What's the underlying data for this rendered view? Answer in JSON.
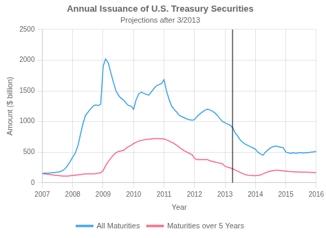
{
  "chart_data": {
    "type": "line",
    "title": "Annual Issuance of U.S. Treasury Securities",
    "subtitle": "Projections after 3/2013",
    "x_label": "Year",
    "y_label": "Amount ($ billion)",
    "x": [
      2007.0,
      2007.08,
      2007.17,
      2007.25,
      2007.33,
      2007.42,
      2007.5,
      2007.58,
      2007.67,
      2007.75,
      2007.83,
      2007.92,
      2008.0,
      2008.08,
      2008.17,
      2008.25,
      2008.33,
      2008.42,
      2008.5,
      2008.58,
      2008.67,
      2008.75,
      2008.83,
      2008.92,
      2009.0,
      2009.08,
      2009.17,
      2009.25,
      2009.33,
      2009.42,
      2009.5,
      2009.58,
      2009.67,
      2009.75,
      2009.83,
      2009.92,
      2010.0,
      2010.08,
      2010.17,
      2010.25,
      2010.33,
      2010.42,
      2010.5,
      2010.58,
      2010.67,
      2010.75,
      2010.83,
      2010.92,
      2011.0,
      2011.08,
      2011.17,
      2011.25,
      2011.33,
      2011.42,
      2011.5,
      2011.58,
      2011.67,
      2011.75,
      2011.83,
      2011.92,
      2012.0,
      2012.08,
      2012.17,
      2012.25,
      2012.33,
      2012.42,
      2012.5,
      2012.58,
      2012.67,
      2012.75,
      2012.83,
      2012.92,
      2013.0,
      2013.08,
      2013.17,
      2013.25,
      2013.33,
      2013.42,
      2013.5,
      2013.58,
      2013.67,
      2013.75,
      2013.83,
      2013.92,
      2014.0,
      2014.08,
      2014.17,
      2014.25,
      2014.33,
      2014.42,
      2014.5,
      2014.58,
      2014.67,
      2014.75,
      2014.83,
      2014.92,
      2015.0,
      2015.08,
      2015.17,
      2015.25,
      2015.33,
      2015.42,
      2015.5,
      2015.58,
      2015.67,
      2015.75,
      2015.83,
      2015.92,
      2016.0
    ],
    "series": [
      {
        "name": "All Maturities",
        "values": [
          150,
          160,
          155,
          160,
          165,
          170,
          175,
          180,
          200,
          230,
          280,
          350,
          420,
          480,
          600,
          780,
          950,
          1100,
          1150,
          1200,
          1250,
          1270,
          1260,
          1280,
          1900,
          2020,
          1950,
          1800,
          1650,
          1500,
          1430,
          1380,
          1350,
          1300,
          1260,
          1250,
          1200,
          1350,
          1450,
          1480,
          1460,
          1440,
          1430,
          1480,
          1540,
          1580,
          1600,
          1620,
          1680,
          1500,
          1350,
          1250,
          1200,
          1150,
          1100,
          1080,
          1060,
          1040,
          1030,
          1020,
          1030,
          1080,
          1120,
          1150,
          1180,
          1200,
          1190,
          1170,
          1140,
          1100,
          1050,
          1000,
          980,
          960,
          940,
          900,
          820,
          760,
          700,
          660,
          630,
          610,
          590,
          570,
          550,
          500,
          470,
          450,
          500,
          540,
          570,
          590,
          600,
          590,
          580,
          570,
          500,
          490,
          480,
          490,
          480,
          490,
          490,
          485,
          490,
          495,
          500,
          505,
          510
        ]
      },
      {
        "name": "Maturities over 5 Years",
        "values": [
          150,
          145,
          140,
          135,
          130,
          125,
          120,
          115,
          110,
          110,
          110,
          115,
          120,
          125,
          130,
          135,
          140,
          145,
          145,
          145,
          145,
          150,
          155,
          165,
          200,
          280,
          350,
          400,
          450,
          490,
          510,
          520,
          530,
          560,
          590,
          610,
          640,
          660,
          680,
          690,
          700,
          710,
          710,
          715,
          720,
          720,
          720,
          718,
          715,
          700,
          680,
          660,
          640,
          610,
          580,
          550,
          520,
          500,
          480,
          460,
          400,
          380,
          380,
          380,
          380,
          380,
          360,
          350,
          340,
          330,
          320,
          310,
          270,
          255,
          245,
          230,
          210,
          190,
          170,
          150,
          135,
          125,
          120,
          118,
          115,
          120,
          130,
          145,
          165,
          180,
          190,
          200,
          205,
          205,
          200,
          195,
          190,
          185,
          182,
          180,
          178,
          176,
          175,
          174,
          173,
          172,
          171,
          170,
          170
        ]
      }
    ],
    "vline": 2013.25,
    "xlim": [
      2007,
      2016
    ],
    "xticks": [
      2007,
      2008,
      2009,
      2010,
      2011,
      2012,
      2013,
      2014,
      2015,
      2016
    ],
    "ylim": [
      0,
      2500
    ],
    "yticks": [
      0,
      500,
      1000,
      1500,
      2000,
      2500
    ],
    "grid": true,
    "legend": "bottom"
  }
}
